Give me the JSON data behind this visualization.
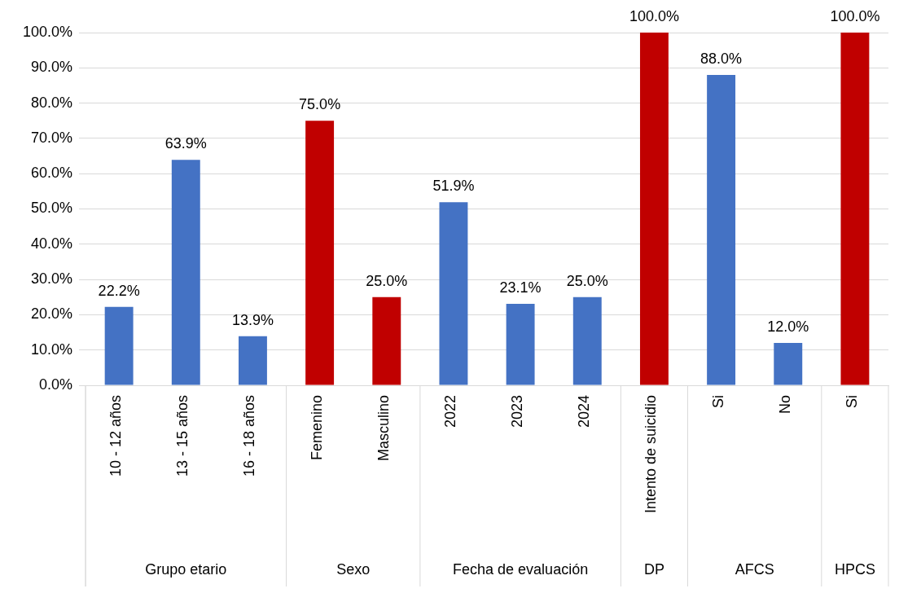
{
  "chart_data": {
    "type": "bar",
    "categories": [
      "10 - 12 años",
      "13 - 15 años",
      "16 - 18 años",
      "Femenino",
      "Masculino",
      "2022",
      "2023",
      "2024",
      "Intento de suicidio",
      "Si",
      "No",
      "Si"
    ],
    "values": [
      22.2,
      63.9,
      13.9,
      75.0,
      25.0,
      51.9,
      23.1,
      25.0,
      100.0,
      88.0,
      12.0,
      100.0
    ],
    "value_labels": [
      "22.2%",
      "63.9%",
      "13.9%",
      "75.0%",
      "25.0%",
      "51.9%",
      "23.1%",
      "25.0%",
      "100.0%",
      "88.0%",
      "12.0%",
      "100.0%"
    ],
    "colors": [
      "#4472c4",
      "#4472c4",
      "#4472c4",
      "#c00000",
      "#c00000",
      "#4472c4",
      "#4472c4",
      "#4472c4",
      "#c00000",
      "#4472c4",
      "#4472c4",
      "#c00000"
    ],
    "ylim": [
      0,
      100
    ],
    "yticks": [
      {
        "value": 0,
        "label": "0.0%"
      },
      {
        "value": 10,
        "label": "10.0%"
      },
      {
        "value": 20,
        "label": "20.0%"
      },
      {
        "value": 30,
        "label": "30.0%"
      },
      {
        "value": 40,
        "label": "40.0%"
      },
      {
        "value": 50,
        "label": "50.0%"
      },
      {
        "value": 60,
        "label": "60.0%"
      },
      {
        "value": 70,
        "label": "70.0%"
      },
      {
        "value": 80,
        "label": "80.0%"
      },
      {
        "value": 90,
        "label": "90.0%"
      },
      {
        "value": 100,
        "label": "100.0%"
      }
    ],
    "annotations": [
      "Grupo etario",
      "Sexo",
      "Fecha de evaluación",
      "DP",
      "AFCS",
      "HPCS"
    ],
    "grid": "y",
    "legend": false
  }
}
